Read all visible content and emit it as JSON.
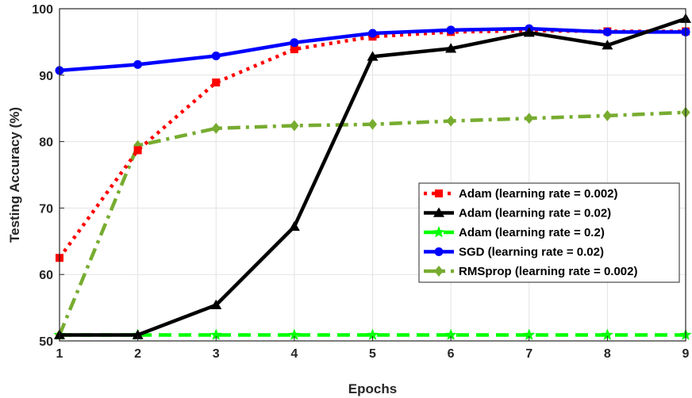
{
  "chart_data": {
    "type": "line",
    "xlabel": "Epochs",
    "ylabel": "Testing Accuracy (%)",
    "xlim": [
      1,
      9
    ],
    "ylim": [
      50,
      100
    ],
    "x_ticks": [
      1,
      2,
      3,
      4,
      5,
      6,
      7,
      8,
      9
    ],
    "y_ticks": [
      50,
      60,
      70,
      80,
      90,
      100
    ],
    "grid": true,
    "legend_position": "right",
    "x": [
      1,
      2,
      3,
      4,
      5,
      6,
      7,
      8,
      9
    ],
    "series": [
      {
        "name": "Adam (learning rate = 0.002)",
        "color": "#ff0000",
        "line_style": "dotted",
        "marker": "square",
        "values": [
          62.5,
          78.7,
          88.9,
          93.9,
          95.8,
          96.5,
          96.7,
          96.6,
          96.6
        ]
      },
      {
        "name": "Adam (learning rate = 0.02)",
        "color": "#000000",
        "line_style": "solid",
        "marker": "triangle",
        "values": [
          50.9,
          50.9,
          55.4,
          67.2,
          92.8,
          94.0,
          96.4,
          94.5,
          98.5
        ]
      },
      {
        "name": "Adam (learning rate = 0.2)",
        "color": "#00ff00",
        "line_style": "dashed",
        "marker": "star",
        "values": [
          50.9,
          50.9,
          50.9,
          50.9,
          50.9,
          50.9,
          50.9,
          50.9,
          50.9
        ]
      },
      {
        "name": "SGD (learning rate = 0.02)",
        "color": "#0000ff",
        "line_style": "solid",
        "marker": "circle",
        "values": [
          90.7,
          91.6,
          92.9,
          94.9,
          96.3,
          96.8,
          97.0,
          96.5,
          96.5
        ]
      },
      {
        "name": "RMSprop (learning rate = 0.002)",
        "color": "#77ac30",
        "line_style": "dashdot",
        "marker": "diamond",
        "values": [
          50.9,
          79.4,
          82.0,
          82.4,
          82.6,
          83.1,
          83.5,
          83.9,
          84.4
        ]
      }
    ]
  }
}
